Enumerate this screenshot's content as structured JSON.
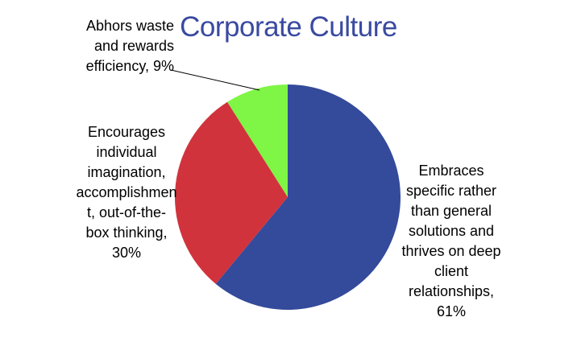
{
  "chart_data": {
    "type": "pie",
    "title": "Corporate Culture",
    "categories": [
      "Embraces specific rather than general solutions and thrives on deep client relationships, 61%",
      "Encourages individual imagination, accomplishment, out-of-the-box thinking, 30%",
      "Abhors waste and rewards efficiency, 9%"
    ],
    "values": [
      61,
      30,
      9
    ],
    "colors": [
      "#344a9a",
      "#d1333d",
      "#7ff545"
    ]
  }
}
